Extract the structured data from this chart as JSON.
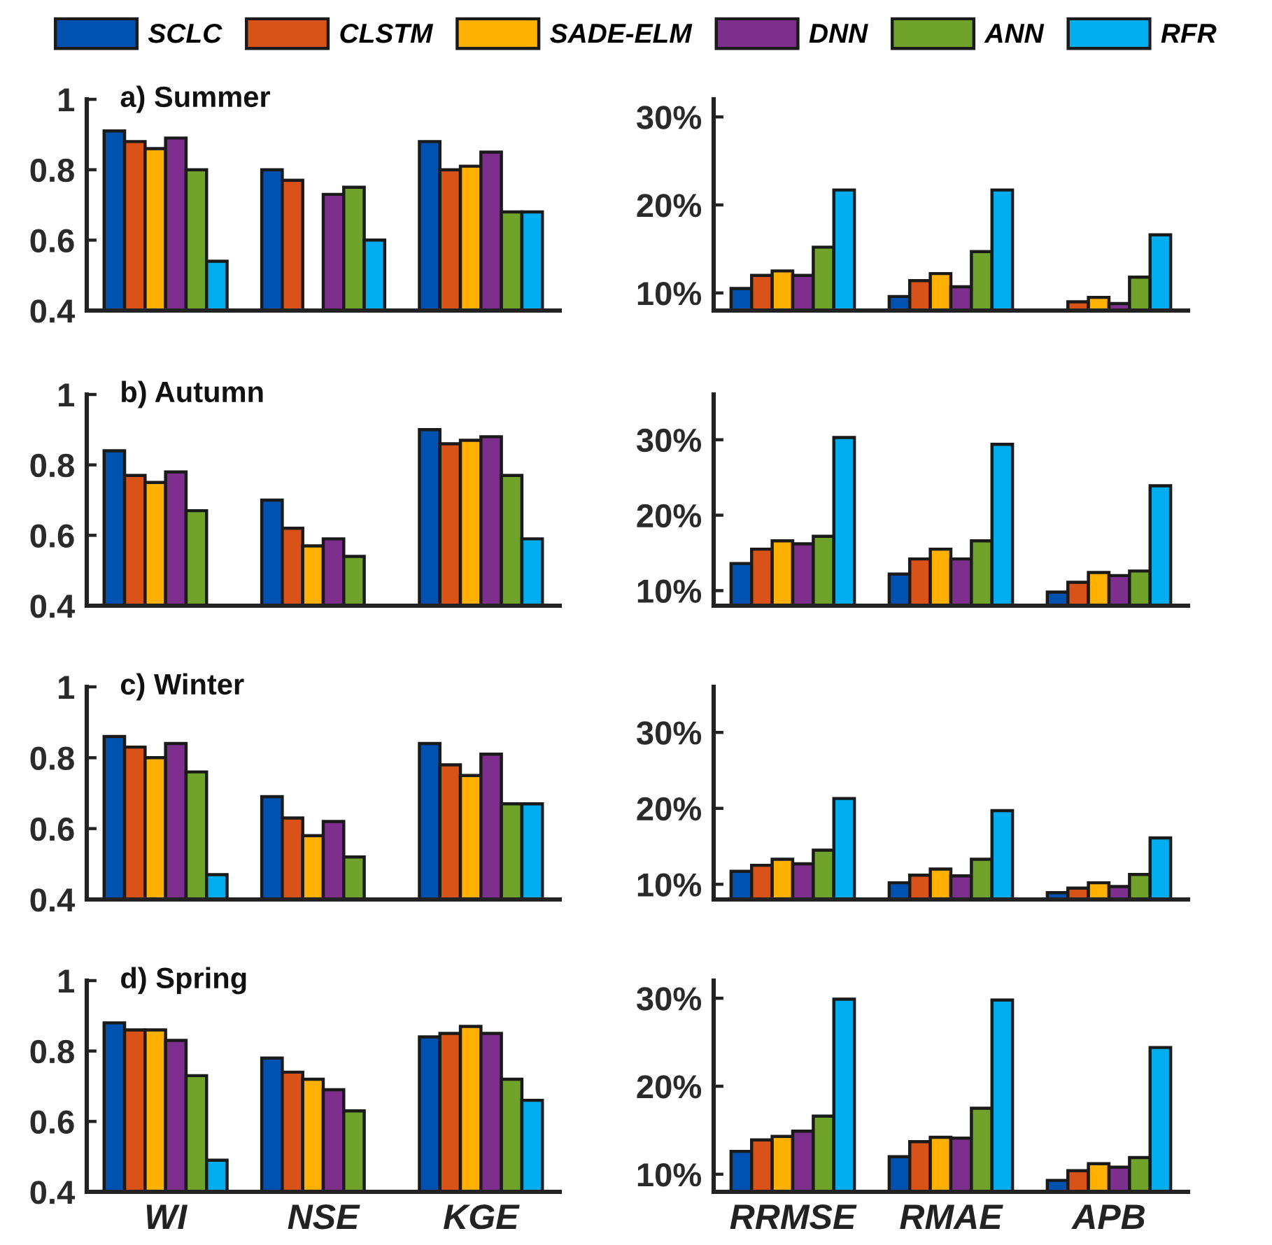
{
  "chart_data": [
    {
      "type": "bar",
      "title": "a) Summer",
      "categories": [
        "WI",
        "NSE",
        "KGE"
      ],
      "ylim": [
        0.4,
        1
      ],
      "yticks": [
        0.4,
        0.6,
        0.8,
        1
      ],
      "tick_labels": "y",
      "legend": "top",
      "series": [
        {
          "name": "SCLC",
          "color": "#0052b0",
          "values": [
            0.91,
            0.8,
            0.88
          ]
        },
        {
          "name": "CLSTM",
          "color": "#d95319",
          "values": [
            0.88,
            0.77,
            0.8
          ]
        },
        {
          "name": "SADE-ELM",
          "color": "#ffb000",
          "values": [
            0.86,
            null,
            0.81
          ]
        },
        {
          "name": "DNN",
          "color": "#7e2f8e",
          "values": [
            0.89,
            0.73,
            0.85
          ]
        },
        {
          "name": "ANN",
          "color": "#70a32a",
          "values": [
            0.8,
            0.75,
            0.68
          ]
        },
        {
          "name": "RFR",
          "color": "#00aeef",
          "values": [
            0.54,
            0.6,
            0.68
          ]
        }
      ]
    },
    {
      "type": "bar",
      "categories": [
        "RRMSE",
        "RMAE",
        "APB"
      ],
      "ylim": [
        8,
        32
      ],
      "yticks": [
        {
          "value": 10,
          "label": "10%"
        },
        {
          "value": 20,
          "label": "20%"
        },
        {
          "value": 30,
          "label": "30%"
        }
      ],
      "tick_labels": "y",
      "series": [
        {
          "name": "SCLC",
          "color": "#0052b0",
          "values": [
            10.5,
            9.6,
            null
          ]
        },
        {
          "name": "CLSTM",
          "color": "#d95319",
          "values": [
            12.0,
            11.4,
            9.0
          ]
        },
        {
          "name": "SADE-ELM",
          "color": "#ffb000",
          "values": [
            12.5,
            12.2,
            9.5
          ]
        },
        {
          "name": "DNN",
          "color": "#7e2f8e",
          "values": [
            12.0,
            10.7,
            8.8
          ]
        },
        {
          "name": "ANN",
          "color": "#70a32a",
          "values": [
            15.2,
            14.7,
            11.8
          ]
        },
        {
          "name": "RFR",
          "color": "#00aeef",
          "values": [
            21.7,
            21.7,
            16.6
          ]
        }
      ]
    },
    {
      "type": "bar",
      "title": "b) Autumn",
      "categories": [
        "WI",
        "NSE",
        "KGE"
      ],
      "ylim": [
        0.4,
        1
      ],
      "yticks": [
        0.4,
        0.6,
        0.8,
        1
      ],
      "tick_labels": "y",
      "series": [
        {
          "name": "SCLC",
          "color": "#0052b0",
          "values": [
            0.84,
            0.7,
            0.9
          ]
        },
        {
          "name": "CLSTM",
          "color": "#d95319",
          "values": [
            0.77,
            0.62,
            0.86
          ]
        },
        {
          "name": "SADE-ELM",
          "color": "#ffb000",
          "values": [
            0.75,
            0.57,
            0.87
          ]
        },
        {
          "name": "DNN",
          "color": "#7e2f8e",
          "values": [
            0.78,
            0.59,
            0.88
          ]
        },
        {
          "name": "ANN",
          "color": "#70a32a",
          "values": [
            0.67,
            0.54,
            0.77
          ]
        },
        {
          "name": "RFR",
          "color": "#00aeef",
          "values": [
            null,
            null,
            0.59
          ]
        }
      ]
    },
    {
      "type": "bar",
      "categories": [
        "RRMSE",
        "RMAE",
        "APB"
      ],
      "ylim": [
        8,
        36
      ],
      "yticks": [
        {
          "value": 10,
          "label": "10%"
        },
        {
          "value": 20,
          "label": "20%"
        },
        {
          "value": 30,
          "label": "30%"
        }
      ],
      "tick_labels": "y",
      "series": [
        {
          "name": "SCLC",
          "color": "#0052b0",
          "values": [
            13.6,
            12.2,
            9.8
          ]
        },
        {
          "name": "CLSTM",
          "color": "#d95319",
          "values": [
            15.5,
            14.2,
            11.1
          ]
        },
        {
          "name": "SADE-ELM",
          "color": "#ffb000",
          "values": [
            16.6,
            15.5,
            12.4
          ]
        },
        {
          "name": "DNN",
          "color": "#7e2f8e",
          "values": [
            16.2,
            14.2,
            12.0
          ]
        },
        {
          "name": "ANN",
          "color": "#70a32a",
          "values": [
            17.2,
            16.6,
            12.6
          ]
        },
        {
          "name": "RFR",
          "color": "#00aeef",
          "values": [
            30.3,
            29.4,
            23.9
          ]
        }
      ]
    },
    {
      "type": "bar",
      "title": "c) Winter",
      "categories": [
        "WI",
        "NSE",
        "KGE"
      ],
      "ylim": [
        0.4,
        1
      ],
      "yticks": [
        0.4,
        0.6,
        0.8,
        1
      ],
      "tick_labels": "y",
      "series": [
        {
          "name": "SCLC",
          "color": "#0052b0",
          "values": [
            0.86,
            0.69,
            0.84
          ]
        },
        {
          "name": "CLSTM",
          "color": "#d95319",
          "values": [
            0.83,
            0.63,
            0.78
          ]
        },
        {
          "name": "SADE-ELM",
          "color": "#ffb000",
          "values": [
            0.8,
            0.58,
            0.75
          ]
        },
        {
          "name": "DNN",
          "color": "#7e2f8e",
          "values": [
            0.84,
            0.62,
            0.81
          ]
        },
        {
          "name": "ANN",
          "color": "#70a32a",
          "values": [
            0.76,
            0.52,
            0.67
          ]
        },
        {
          "name": "RFR",
          "color": "#00aeef",
          "values": [
            0.47,
            null,
            0.67
          ]
        }
      ]
    },
    {
      "type": "bar",
      "categories": [
        "RRMSE",
        "RMAE",
        "APB"
      ],
      "ylim": [
        8,
        36
      ],
      "yticks": [
        {
          "value": 10,
          "label": "10%"
        },
        {
          "value": 20,
          "label": "20%"
        },
        {
          "value": 30,
          "label": "30%"
        }
      ],
      "tick_labels": "y",
      "series": [
        {
          "name": "SCLC",
          "color": "#0052b0",
          "values": [
            11.7,
            10.2,
            8.9
          ]
        },
        {
          "name": "CLSTM",
          "color": "#d95319",
          "values": [
            12.5,
            11.2,
            9.5
          ]
        },
        {
          "name": "SADE-ELM",
          "color": "#ffb000",
          "values": [
            13.3,
            12.0,
            10.2
          ]
        },
        {
          "name": "DNN",
          "color": "#7e2f8e",
          "values": [
            12.7,
            11.1,
            9.7
          ]
        },
        {
          "name": "ANN",
          "color": "#70a32a",
          "values": [
            14.5,
            13.3,
            11.3
          ]
        },
        {
          "name": "RFR",
          "color": "#00aeef",
          "values": [
            21.3,
            19.7,
            16.1
          ]
        }
      ]
    },
    {
      "type": "bar",
      "title": "d) Spring",
      "categories": [
        "WI",
        "NSE",
        "KGE"
      ],
      "ylim": [
        0.4,
        1
      ],
      "yticks": [
        0.4,
        0.6,
        0.8,
        1
      ],
      "series": [
        {
          "name": "SCLC",
          "color": "#0052b0",
          "values": [
            0.88,
            0.78,
            0.84
          ]
        },
        {
          "name": "CLSTM",
          "color": "#d95319",
          "values": [
            0.86,
            0.74,
            0.85
          ]
        },
        {
          "name": "SADE-ELM",
          "color": "#ffb000",
          "values": [
            0.86,
            0.72,
            0.87
          ]
        },
        {
          "name": "DNN",
          "color": "#7e2f8e",
          "values": [
            0.83,
            0.69,
            0.85
          ]
        },
        {
          "name": "ANN",
          "color": "#70a32a",
          "values": [
            0.73,
            0.63,
            0.72
          ]
        },
        {
          "name": "RFR",
          "color": "#00aeef",
          "values": [
            0.49,
            null,
            0.66
          ]
        }
      ]
    },
    {
      "type": "bar",
      "categories": [
        "RRMSE",
        "RMAE",
        "APB"
      ],
      "ylim": [
        8,
        32
      ],
      "yticks": [
        {
          "value": 10,
          "label": "10%"
        },
        {
          "value": 20,
          "label": "20%"
        },
        {
          "value": 30,
          "label": "30%"
        }
      ],
      "series": [
        {
          "name": "SCLC",
          "color": "#0052b0",
          "values": [
            12.6,
            12.0,
            9.3
          ]
        },
        {
          "name": "CLSTM",
          "color": "#d95319",
          "values": [
            13.9,
            13.7,
            10.4
          ]
        },
        {
          "name": "SADE-ELM",
          "color": "#ffb000",
          "values": [
            14.3,
            14.2,
            11.2
          ]
        },
        {
          "name": "DNN",
          "color": "#7e2f8e",
          "values": [
            14.9,
            14.1,
            10.8
          ]
        },
        {
          "name": "ANN",
          "color": "#70a32a",
          "values": [
            16.6,
            17.5,
            11.9
          ]
        },
        {
          "name": "RFR",
          "color": "#00aeef",
          "values": [
            29.9,
            29.8,
            24.4
          ]
        }
      ]
    }
  ]
}
